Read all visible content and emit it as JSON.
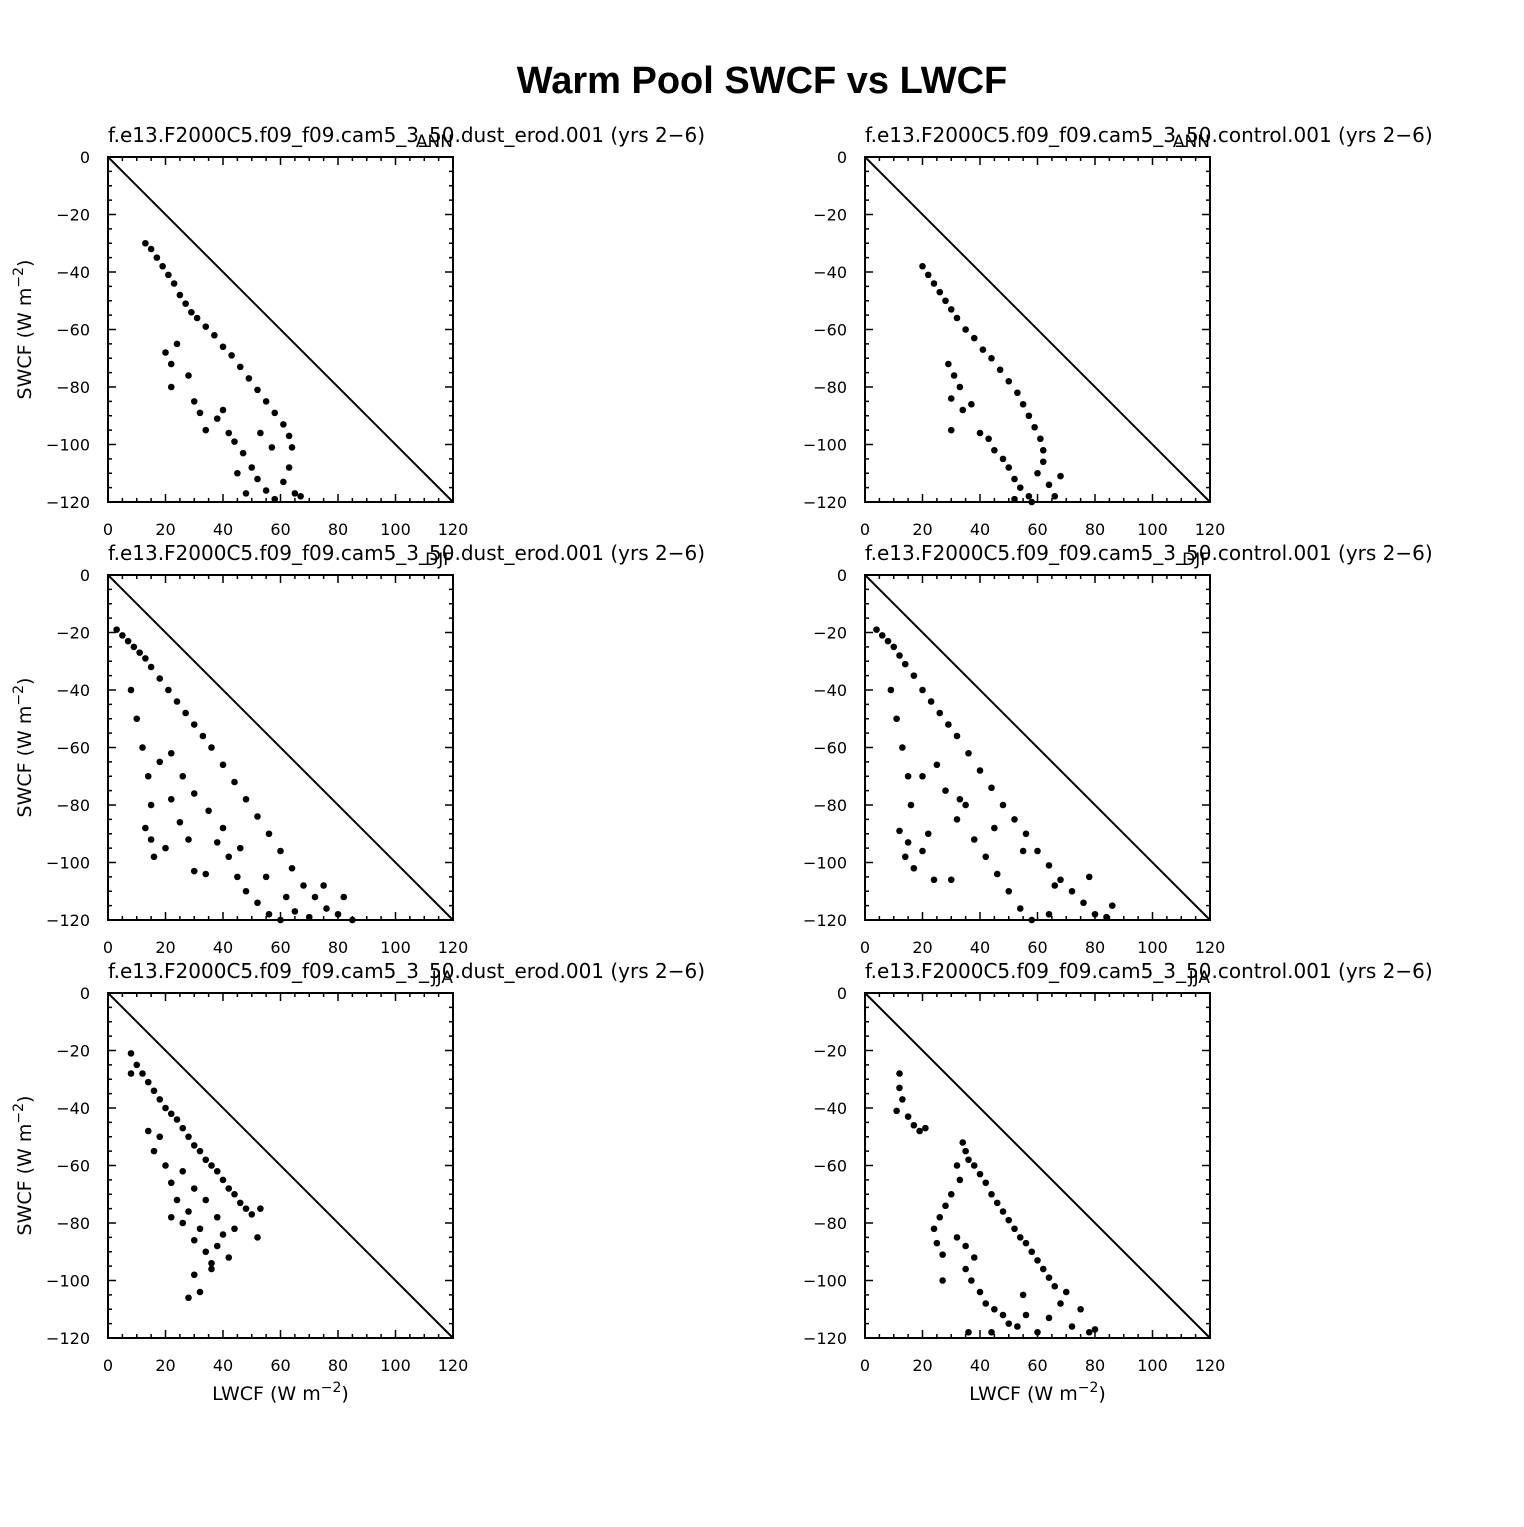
{
  "title": "Warm Pool SWCF vs LWCF",
  "xlabel": "LWCF  (W  m",
  "ylabel": "SWCF  (W  m",
  "unit_exponent": "−2",
  "x_ticks": [
    "0",
    "20",
    "40",
    "60",
    "80",
    "100",
    "120"
  ],
  "y_ticks": [
    "0",
    "−20",
    "−40",
    "−60",
    "−80",
    "−100",
    "−120"
  ],
  "chart_data": [
    {
      "type": "scatter",
      "case": "f.e13.F2000C5.f09_f09.cam5_3_50.dust_erod.001  (yrs  2−6)",
      "season": "ANN",
      "xlim": [
        0,
        120
      ],
      "ylim": [
        -120,
        0
      ],
      "reference_line": "y = -x",
      "points": [
        [
          13,
          -30
        ],
        [
          15,
          -32
        ],
        [
          17,
          -35
        ],
        [
          19,
          -38
        ],
        [
          21,
          -41
        ],
        [
          23,
          -44
        ],
        [
          25,
          -48
        ],
        [
          27,
          -51
        ],
        [
          29,
          -54
        ],
        [
          31,
          -56
        ],
        [
          34,
          -59
        ],
        [
          37,
          -62
        ],
        [
          40,
          -66
        ],
        [
          43,
          -69
        ],
        [
          46,
          -73
        ],
        [
          49,
          -77
        ],
        [
          52,
          -81
        ],
        [
          55,
          -85
        ],
        [
          58,
          -89
        ],
        [
          61,
          -93
        ],
        [
          63,
          -97
        ],
        [
          64,
          -101
        ],
        [
          20,
          -68
        ],
        [
          22,
          -72
        ],
        [
          24,
          -65
        ],
        [
          28,
          -76
        ],
        [
          22,
          -80
        ],
        [
          30,
          -85
        ],
        [
          32,
          -89
        ],
        [
          34,
          -95
        ],
        [
          38,
          -91
        ],
        [
          40,
          -88
        ],
        [
          42,
          -96
        ],
        [
          44,
          -99
        ],
        [
          47,
          -103
        ],
        [
          50,
          -108
        ],
        [
          52,
          -112
        ],
        [
          55,
          -116
        ],
        [
          58,
          -119
        ],
        [
          61,
          -113
        ],
        [
          63,
          -108
        ],
        [
          65,
          -117
        ],
        [
          67,
          -118
        ],
        [
          45,
          -110
        ],
        [
          48,
          -117
        ],
        [
          53,
          -96
        ],
        [
          57,
          -101
        ]
      ]
    },
    {
      "type": "scatter",
      "case": "f.e13.F2000C5.f09_f09.cam5_3_50.control.001  (yrs  2−6)",
      "season": "ANN",
      "xlim": [
        0,
        120
      ],
      "ylim": [
        -120,
        0
      ],
      "reference_line": "y = -x",
      "points": [
        [
          20,
          -38
        ],
        [
          22,
          -41
        ],
        [
          24,
          -44
        ],
        [
          26,
          -47
        ],
        [
          28,
          -50
        ],
        [
          30,
          -53
        ],
        [
          32,
          -56
        ],
        [
          35,
          -60
        ],
        [
          38,
          -63
        ],
        [
          41,
          -67
        ],
        [
          44,
          -70
        ],
        [
          47,
          -74
        ],
        [
          50,
          -78
        ],
        [
          53,
          -82
        ],
        [
          55,
          -86
        ],
        [
          57,
          -90
        ],
        [
          59,
          -94
        ],
        [
          61,
          -98
        ],
        [
          62,
          -102
        ],
        [
          29,
          -72
        ],
        [
          31,
          -76
        ],
        [
          33,
          -80
        ],
        [
          30,
          -84
        ],
        [
          34,
          -88
        ],
        [
          37,
          -86
        ],
        [
          30,
          -95
        ],
        [
          40,
          -96
        ],
        [
          43,
          -98
        ],
        [
          45,
          -102
        ],
        [
          48,
          -105
        ],
        [
          50,
          -108
        ],
        [
          52,
          -112
        ],
        [
          54,
          -115
        ],
        [
          57,
          -118
        ],
        [
          60,
          -110
        ],
        [
          62,
          -106
        ],
        [
          64,
          -114
        ],
        [
          66,
          -118
        ],
        [
          68,
          -111
        ],
        [
          52,
          -119
        ],
        [
          58,
          -120
        ]
      ]
    },
    {
      "type": "scatter",
      "case": "f.e13.F2000C5.f09_f09.cam5_3_50.dust_erod.001  (yrs  2−6)",
      "season": "DJF",
      "xlim": [
        0,
        120
      ],
      "ylim": [
        -120,
        0
      ],
      "reference_line": "y = -x",
      "points": [
        [
          3,
          -19
        ],
        [
          5,
          -21
        ],
        [
          7,
          -23
        ],
        [
          9,
          -25
        ],
        [
          11,
          -27
        ],
        [
          13,
          -29
        ],
        [
          15,
          -32
        ],
        [
          18,
          -36
        ],
        [
          21,
          -40
        ],
        [
          24,
          -44
        ],
        [
          27,
          -48
        ],
        [
          30,
          -52
        ],
        [
          33,
          -56
        ],
        [
          36,
          -60
        ],
        [
          40,
          -66
        ],
        [
          44,
          -72
        ],
        [
          48,
          -78
        ],
        [
          52,
          -84
        ],
        [
          56,
          -90
        ],
        [
          60,
          -96
        ],
        [
          64,
          -102
        ],
        [
          68,
          -108
        ],
        [
          72,
          -112
        ],
        [
          76,
          -116
        ],
        [
          80,
          -118
        ],
        [
          85,
          -120
        ],
        [
          8,
          -40
        ],
        [
          10,
          -50
        ],
        [
          12,
          -60
        ],
        [
          14,
          -70
        ],
        [
          15,
          -80
        ],
        [
          13,
          -88
        ],
        [
          15,
          -92
        ],
        [
          16,
          -98
        ],
        [
          20,
          -95
        ],
        [
          22,
          -78
        ],
        [
          25,
          -86
        ],
        [
          28,
          -92
        ],
        [
          30,
          -103
        ],
        [
          34,
          -104
        ],
        [
          38,
          -93
        ],
        [
          42,
          -98
        ],
        [
          45,
          -105
        ],
        [
          48,
          -110
        ],
        [
          52,
          -114
        ],
        [
          56,
          -118
        ],
        [
          60,
          -120
        ],
        [
          65,
          -117
        ],
        [
          70,
          -119
        ],
        [
          18,
          -65
        ],
        [
          22,
          -62
        ],
        [
          26,
          -70
        ],
        [
          30,
          -76
        ],
        [
          35,
          -82
        ],
        [
          40,
          -88
        ],
        [
          46,
          -95
        ],
        [
          55,
          -105
        ],
        [
          62,
          -112
        ],
        [
          75,
          -108
        ],
        [
          82,
          -112
        ]
      ]
    },
    {
      "type": "scatter",
      "case": "f.e13.F2000C5.f09_f09.cam5_3_50.control.001  (yrs  2−6)",
      "season": "DJF",
      "xlim": [
        0,
        120
      ],
      "ylim": [
        -120,
        0
      ],
      "reference_line": "y = -x",
      "points": [
        [
          4,
          -19
        ],
        [
          6,
          -21
        ],
        [
          8,
          -23
        ],
        [
          10,
          -25
        ],
        [
          12,
          -28
        ],
        [
          14,
          -31
        ],
        [
          17,
          -35
        ],
        [
          20,
          -40
        ],
        [
          23,
          -44
        ],
        [
          26,
          -48
        ],
        [
          29,
          -52
        ],
        [
          32,
          -56
        ],
        [
          36,
          -62
        ],
        [
          40,
          -68
        ],
        [
          44,
          -74
        ],
        [
          48,
          -80
        ],
        [
          52,
          -85
        ],
        [
          56,
          -90
        ],
        [
          60,
          -96
        ],
        [
          64,
          -101
        ],
        [
          68,
          -106
        ],
        [
          72,
          -110
        ],
        [
          76,
          -114
        ],
        [
          80,
          -118
        ],
        [
          84,
          -119
        ],
        [
          9,
          -40
        ],
        [
          11,
          -50
        ],
        [
          13,
          -60
        ],
        [
          15,
          -70
        ],
        [
          16,
          -80
        ],
        [
          12,
          -89
        ],
        [
          15,
          -93
        ],
        [
          14,
          -98
        ],
        [
          17,
          -102
        ],
        [
          20,
          -96
        ],
        [
          22,
          -90
        ],
        [
          24,
          -106
        ],
        [
          30,
          -106
        ],
        [
          32,
          -85
        ],
        [
          35,
          -80
        ],
        [
          38,
          -92
        ],
        [
          42,
          -98
        ],
        [
          46,
          -104
        ],
        [
          50,
          -110
        ],
        [
          54,
          -116
        ],
        [
          58,
          -120
        ],
        [
          64,
          -118
        ],
        [
          20,
          -70
        ],
        [
          25,
          -66
        ],
        [
          28,
          -75
        ],
        [
          33,
          -78
        ],
        [
          45,
          -88
        ],
        [
          55,
          -96
        ],
        [
          66,
          -108
        ],
        [
          78,
          -105
        ],
        [
          86,
          -115
        ]
      ]
    },
    {
      "type": "scatter",
      "case": "f.e13.F2000C5.f09_f09.cam5_3_50.dust_erod.001  (yrs  2−6)",
      "season": "JJA",
      "xlim": [
        0,
        120
      ],
      "ylim": [
        -120,
        0
      ],
      "reference_line": "y = -x",
      "points": [
        [
          8,
          -21
        ],
        [
          8,
          -28
        ],
        [
          10,
          -25
        ],
        [
          12,
          -28
        ],
        [
          14,
          -31
        ],
        [
          16,
          -34
        ],
        [
          18,
          -37
        ],
        [
          20,
          -40
        ],
        [
          22,
          -42
        ],
        [
          24,
          -44
        ],
        [
          26,
          -47
        ],
        [
          28,
          -50
        ],
        [
          30,
          -53
        ],
        [
          32,
          -55
        ],
        [
          34,
          -58
        ],
        [
          36,
          -60
        ],
        [
          38,
          -62
        ],
        [
          40,
          -65
        ],
        [
          42,
          -68
        ],
        [
          44,
          -70
        ],
        [
          46,
          -73
        ],
        [
          48,
          -75
        ],
        [
          50,
          -77
        ],
        [
          53,
          -75
        ],
        [
          52,
          -85
        ],
        [
          14,
          -48
        ],
        [
          16,
          -55
        ],
        [
          18,
          -50
        ],
        [
          20,
          -60
        ],
        [
          22,
          -66
        ],
        [
          24,
          -72
        ],
        [
          22,
          -78
        ],
        [
          26,
          -80
        ],
        [
          28,
          -76
        ],
        [
          30,
          -86
        ],
        [
          32,
          -82
        ],
        [
          34,
          -90
        ],
        [
          36,
          -94
        ],
        [
          38,
          -88
        ],
        [
          40,
          -84
        ],
        [
          42,
          -92
        ],
        [
          44,
          -82
        ],
        [
          30,
          -98
        ],
        [
          32,
          -104
        ],
        [
          28,
          -106
        ],
        [
          36,
          -96
        ],
        [
          26,
          -62
        ],
        [
          30,
          -68
        ],
        [
          34,
          -72
        ],
        [
          38,
          -78
        ]
      ]
    },
    {
      "type": "scatter",
      "case": "f.e13.F2000C5.f09_f09.cam5_3_50.control.001  (yrs  2−6)",
      "season": "JJA",
      "xlim": [
        0,
        120
      ],
      "ylim": [
        -120,
        0
      ],
      "reference_line": "y = -x",
      "points": [
        [
          12,
          -28
        ],
        [
          12,
          -33
        ],
        [
          13,
          -37
        ],
        [
          11,
          -41
        ],
        [
          15,
          -43
        ],
        [
          17,
          -46
        ],
        [
          19,
          -48
        ],
        [
          21,
          -47
        ],
        [
          34,
          -52
        ],
        [
          35,
          -55
        ],
        [
          36,
          -58
        ],
        [
          38,
          -60
        ],
        [
          40,
          -63
        ],
        [
          42,
          -66
        ],
        [
          44,
          -70
        ],
        [
          46,
          -73
        ],
        [
          48,
          -76
        ],
        [
          50,
          -79
        ],
        [
          52,
          -82
        ],
        [
          54,
          -85
        ],
        [
          56,
          -87
        ],
        [
          58,
          -90
        ],
        [
          60,
          -93
        ],
        [
          62,
          -96
        ],
        [
          64,
          -99
        ],
        [
          66,
          -102
        ],
        [
          70,
          -104
        ],
        [
          32,
          -60
        ],
        [
          33,
          -65
        ],
        [
          30,
          -70
        ],
        [
          28,
          -74
        ],
        [
          26,
          -78
        ],
        [
          24,
          -82
        ],
        [
          25,
          -87
        ],
        [
          27,
          -91
        ],
        [
          32,
          -85
        ],
        [
          35,
          -88
        ],
        [
          38,
          -92
        ],
        [
          35,
          -96
        ],
        [
          27,
          -100
        ],
        [
          37,
          -100
        ],
        [
          40,
          -104
        ],
        [
          42,
          -108
        ],
        [
          45,
          -110
        ],
        [
          48,
          -112
        ],
        [
          50,
          -115
        ],
        [
          53,
          -116
        ],
        [
          56,
          -112
        ],
        [
          60,
          -118
        ],
        [
          64,
          -113
        ],
        [
          68,
          -108
        ],
        [
          72,
          -116
        ],
        [
          75,
          -110
        ],
        [
          78,
          -118
        ],
        [
          80,
          -117
        ],
        [
          36,
          -118
        ],
        [
          44,
          -118
        ],
        [
          55,
          -105
        ]
      ]
    }
  ]
}
